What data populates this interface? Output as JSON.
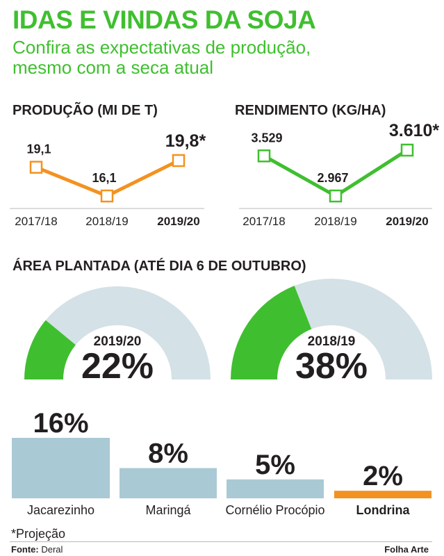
{
  "header": {
    "title": "IDAS E VINDAS DA SOJA",
    "subtitle_line1": "Confira as expectativas de produção,",
    "subtitle_line2": "mesmo com a seca atual"
  },
  "chart_data": [
    {
      "type": "line",
      "title": "PRODUÇÃO (MI DE T)",
      "categories": [
        "2017/18",
        "2018/19",
        "2019/20"
      ],
      "values": [
        19.1,
        16.1,
        19.8
      ],
      "labels": [
        "19,1",
        "16,1",
        "19,8*"
      ],
      "color": "#f39220"
    },
    {
      "type": "line",
      "title": "RENDIMENTO (KG/HA)",
      "categories": [
        "2017/18",
        "2018/19",
        "2019/20"
      ],
      "values": [
        3529,
        2967,
        3610
      ],
      "labels": [
        "3.529",
        "2.967",
        "3.610*"
      ],
      "color": "#3fbf2f"
    },
    {
      "type": "pie",
      "title": "ÁREA PLANTADA (ATÉ DIA 6 DE OUTUBRO)",
      "gauges": [
        {
          "year": "2019/20",
          "value": 22,
          "label": "22%"
        },
        {
          "year": "2018/19",
          "value": 38,
          "label": "38%"
        }
      ],
      "fill_color": "#3fbf2f",
      "track_color": "#d4e1e6"
    },
    {
      "type": "bar",
      "categories": [
        "Jacarezinho",
        "Maringá",
        "Cornélio Procópio",
        "Londrina"
      ],
      "values": [
        16,
        8,
        5,
        2
      ],
      "labels": [
        "16%",
        "8%",
        "5%",
        "2%"
      ],
      "colors": [
        "#a9c9d4",
        "#a9c9d4",
        "#a9c9d4",
        "#f39220"
      ],
      "highlight": "Londrina"
    }
  ],
  "footer": {
    "footnote": "*Projeção",
    "source_label": "Fonte:",
    "source_value": "Deral",
    "credit": "Folha Arte"
  }
}
